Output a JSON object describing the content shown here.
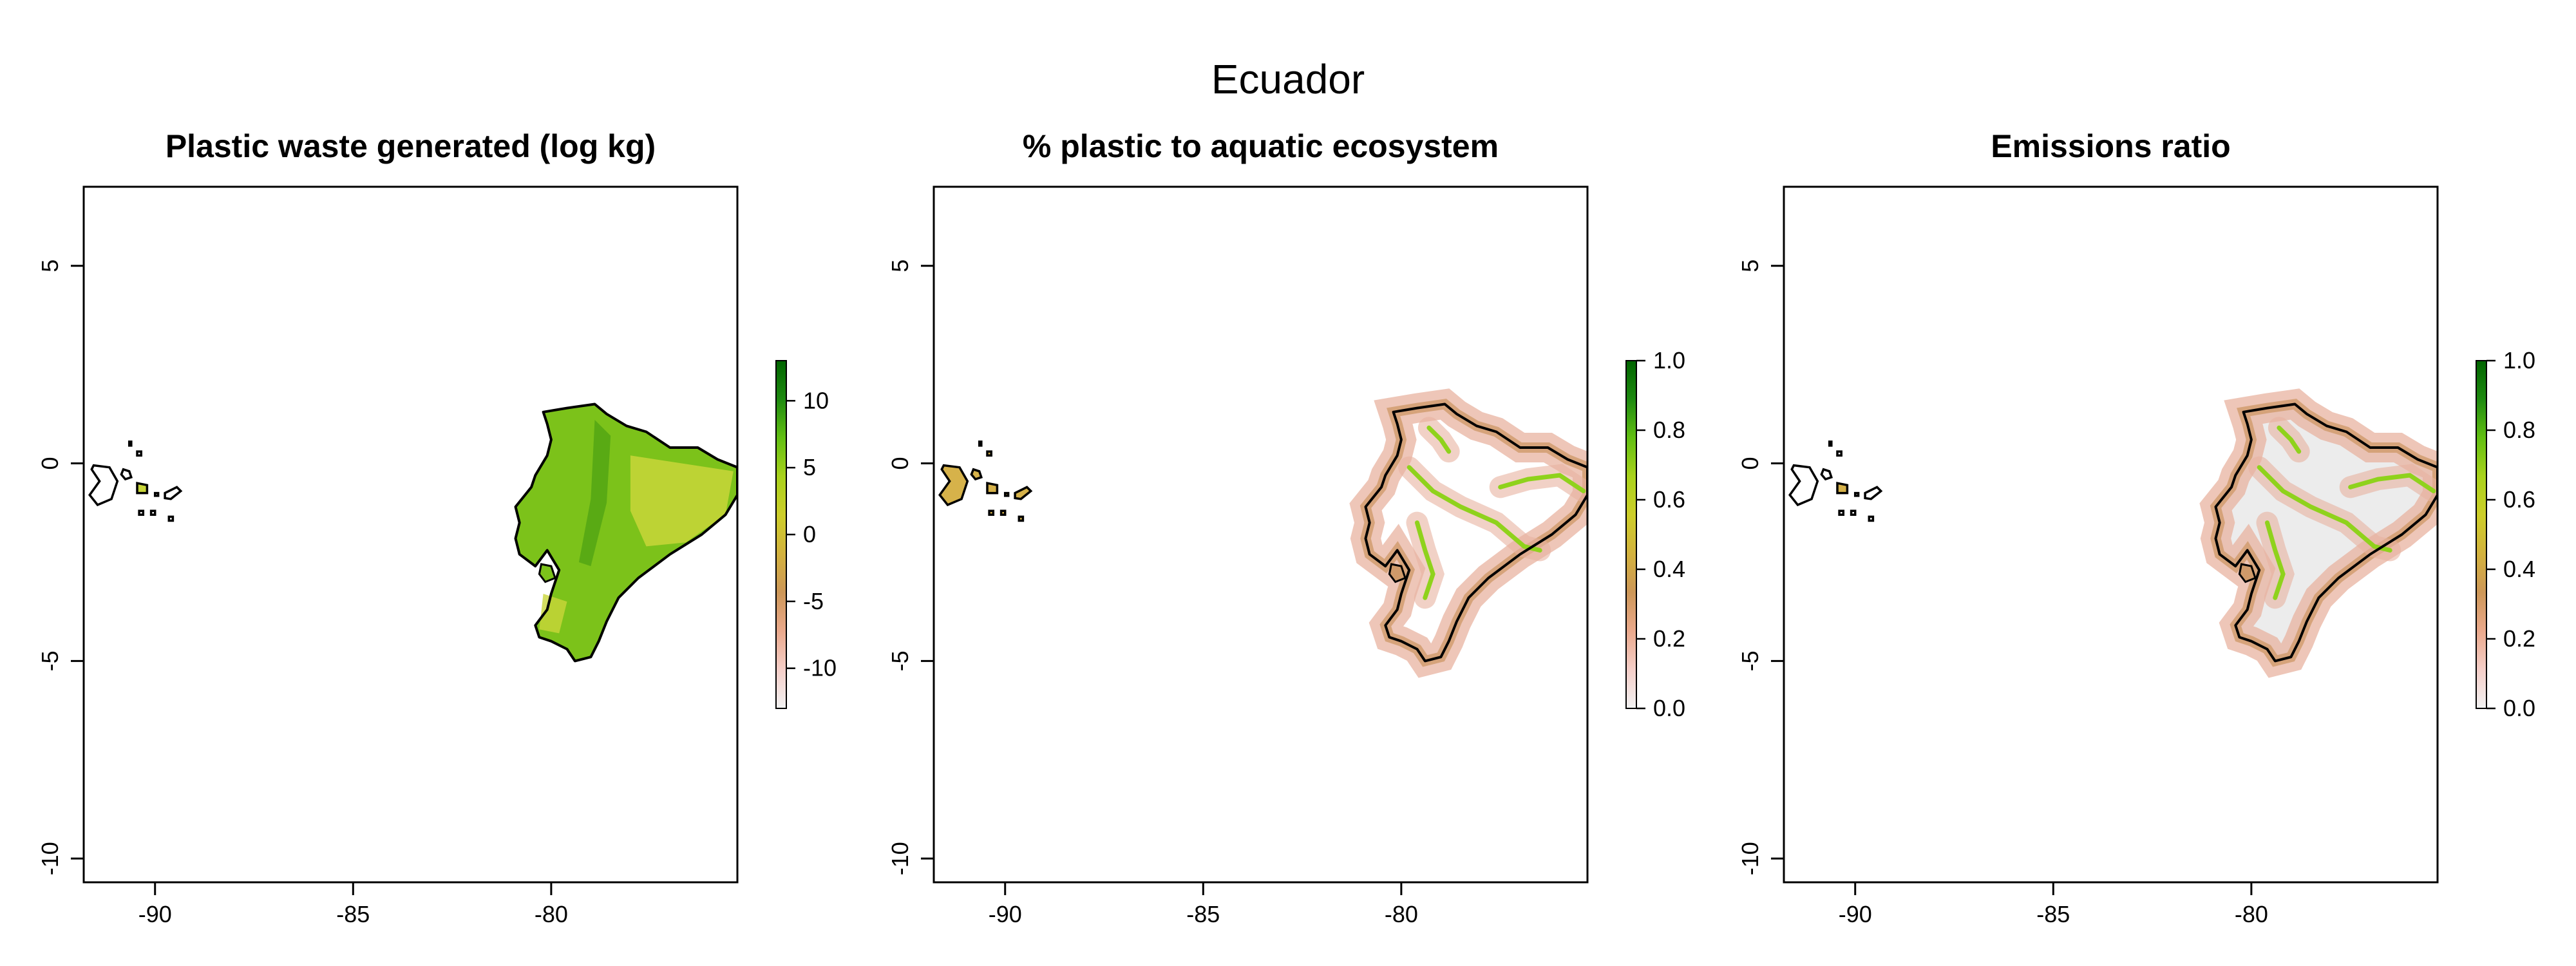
{
  "figure": {
    "title": "Ecuador",
    "panels": [
      {
        "title": "Plastic waste generated (log kg)",
        "x_ticks": [
          "-90",
          "-85",
          "-80"
        ],
        "y_ticks": [
          "5",
          "0",
          "-5",
          "-10"
        ],
        "legend": {
          "ticks": [
            "10",
            "5",
            "0",
            "-5",
            "-10"
          ],
          "range": [
            -13,
            13
          ],
          "colors": [
            "#f2f2f2",
            "#f5cfc9",
            "#eaa98c",
            "#cd9758",
            "#d3b23e",
            "#cdce2a",
            "#a9d21c",
            "#62bf12",
            "#1e8a10",
            "#006400"
          ]
        }
      },
      {
        "title": "% plastic to aquatic ecosystem",
        "x_ticks": [
          "-90",
          "-85",
          "-80"
        ],
        "y_ticks": [
          "5",
          "0",
          "-5",
          "-10"
        ],
        "legend": {
          "ticks": [
            "1.0",
            "0.8",
            "0.6",
            "0.4",
            "0.2",
            "0.0"
          ],
          "range": [
            0,
            1
          ],
          "colors": [
            "#f2f2f2",
            "#f5cfc9",
            "#eaa98c",
            "#cd9758",
            "#d3b23e",
            "#cdce2a",
            "#a9d21c",
            "#62bf12",
            "#1e8a10",
            "#006400"
          ]
        }
      },
      {
        "title": "Emissions ratio",
        "x_ticks": [
          "-90",
          "-85",
          "-80"
        ],
        "y_ticks": [
          "5",
          "0",
          "-5",
          "-10"
        ],
        "legend": {
          "ticks": [
            "1.0",
            "0.8",
            "0.6",
            "0.4",
            "0.2",
            "0.0"
          ],
          "range": [
            0,
            1
          ],
          "colors": [
            "#f2f2f2",
            "#f5cfc9",
            "#eaa98c",
            "#cd9758",
            "#d3b23e",
            "#cdce2a",
            "#a9d21c",
            "#62bf12",
            "#1e8a10",
            "#006400"
          ]
        }
      }
    ],
    "map_colors": {
      "outline": "#000000",
      "green_fill": "#7cc21a",
      "green_light": "#c9d63a",
      "white_interior": "#ffffff",
      "grey_interior": "#ececec",
      "coastal_pink": "#e8b3a0",
      "coastal_tan": "#cf9a6a",
      "river_green": "#8fd21c",
      "island_tan": "#d6b24a"
    }
  }
}
